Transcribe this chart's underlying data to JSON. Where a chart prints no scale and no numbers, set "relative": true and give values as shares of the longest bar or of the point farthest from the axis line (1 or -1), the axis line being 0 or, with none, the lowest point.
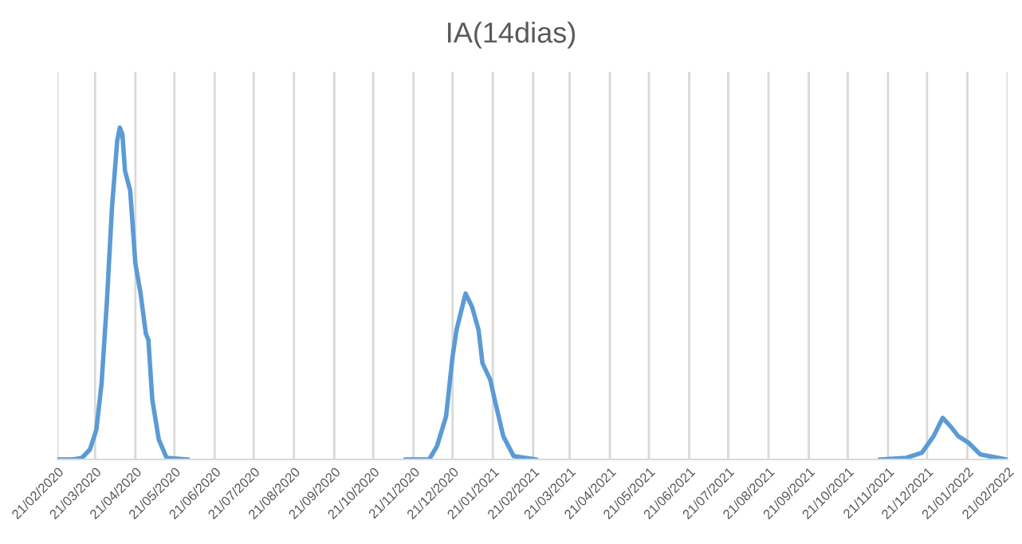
{
  "chart_data": {
    "type": "line",
    "title": "IA(14dias)",
    "relative": true,
    "grid": "x",
    "marker": "none",
    "line_style": "solid",
    "xlim": [
      "2020-02-21",
      "2022-02-21"
    ],
    "xticks": [
      {
        "value": "2020-02-21",
        "label": "21/02/2020"
      },
      {
        "value": "2020-03-21",
        "label": "21/03/2020"
      },
      {
        "value": "2020-04-21",
        "label": "21/04/2020"
      },
      {
        "value": "2020-05-21",
        "label": "21/05/2020"
      },
      {
        "value": "2020-06-21",
        "label": "21/06/2020"
      },
      {
        "value": "2020-07-21",
        "label": "21/07/2020"
      },
      {
        "value": "2020-08-21",
        "label": "21/08/2020"
      },
      {
        "value": "2020-09-21",
        "label": "21/09/2020"
      },
      {
        "value": "2020-10-21",
        "label": "21/10/2020"
      },
      {
        "value": "2020-11-21",
        "label": "21/11/2020"
      },
      {
        "value": "2020-12-21",
        "label": "21/12/2020"
      },
      {
        "value": "2021-01-21",
        "label": "21/01/2021"
      },
      {
        "value": "2021-02-21",
        "label": "21/02/2021"
      },
      {
        "value": "2021-03-21",
        "label": "21/03/2021"
      },
      {
        "value": "2021-04-21",
        "label": "21/04/2021"
      },
      {
        "value": "2021-05-21",
        "label": "21/05/2021"
      },
      {
        "value": "2021-06-21",
        "label": "21/06/2021"
      },
      {
        "value": "2021-07-21",
        "label": "21/07/2021"
      },
      {
        "value": "2021-08-21",
        "label": "21/08/2021"
      },
      {
        "value": "2021-09-21",
        "label": "21/09/2021"
      },
      {
        "value": "2021-10-21",
        "label": "21/10/2021"
      },
      {
        "value": "2021-11-21",
        "label": "21/11/2021"
      },
      {
        "value": "2021-12-21",
        "label": "21/12/2021"
      },
      {
        "value": "2022-01-21",
        "label": "21/01/2022"
      },
      {
        "value": "2022-02-21",
        "label": "21/02/2022"
      }
    ],
    "series": [
      {
        "color": "#5b9bd5",
        "x": [
          "2020-02-21",
          "2020-03-04",
          "2020-03-11",
          "2020-03-17",
          "2020-03-22",
          "2020-03-26",
          "2020-03-30",
          "2020-04-03",
          "2020-04-07",
          "2020-04-09",
          "2020-04-11",
          "2020-04-13",
          "2020-04-17",
          "2020-04-21",
          "2020-04-25",
          "2020-04-29",
          "2020-05-01",
          "2020-05-04",
          "2020-05-09",
          "2020-05-15",
          "2020-05-31",
          "2020-08-01",
          "2020-11-15",
          "2020-12-03",
          "2020-12-09",
          "2020-12-16",
          "2020-12-21",
          "2020-12-24",
          "2020-12-31",
          "2021-01-05",
          "2021-01-10",
          "2021-01-13",
          "2021-01-19",
          "2021-01-23",
          "2021-01-29",
          "2021-02-06",
          "2021-02-23",
          "2021-07-01",
          "2021-11-15",
          "2021-12-05",
          "2021-12-17",
          "2021-12-26",
          "2022-01-02",
          "2022-01-08",
          "2022-01-14",
          "2022-01-22",
          "2022-01-31",
          "2022-02-20"
        ],
        "values": [
          0,
          0,
          0.005,
          0.03,
          0.09,
          0.23,
          0.47,
          0.76,
          0.96,
          1.0,
          0.98,
          0.87,
          0.81,
          0.59,
          0.5,
          0.38,
          0.36,
          0.18,
          0.06,
          0.005,
          0,
          null,
          0,
          0,
          0.04,
          0.13,
          0.31,
          0.39,
          0.5,
          0.46,
          0.39,
          0.29,
          0.24,
          0.17,
          0.07,
          0.01,
          0,
          null,
          0,
          0.005,
          0.02,
          0.07,
          0.125,
          0.1,
          0.07,
          0.05,
          0.015,
          0
        ]
      }
    ]
  }
}
